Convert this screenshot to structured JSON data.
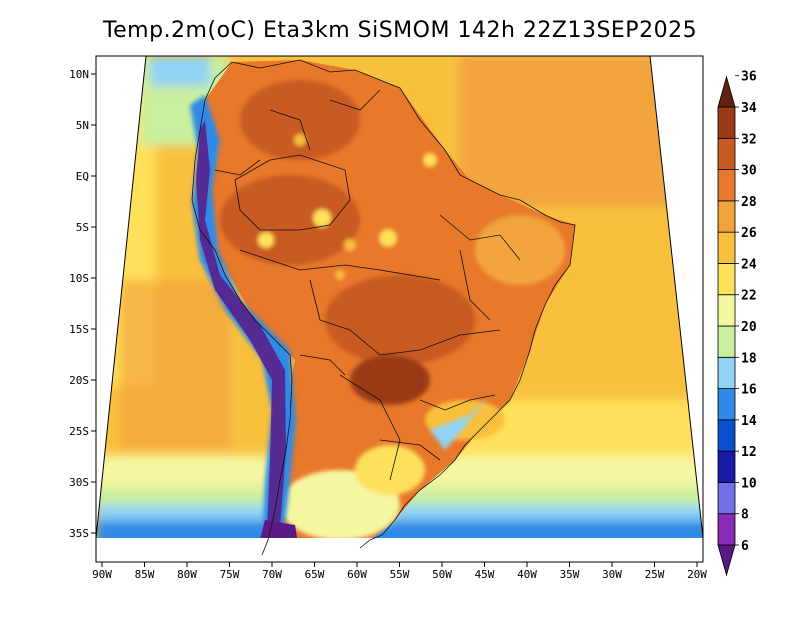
{
  "title": "Temp.2m(oC) Eta3km SiSMOM 142h 22Z13SEP2025",
  "map": {
    "variable": "2 m air temperature",
    "units": "oC",
    "region": "South America / Brazil",
    "lat_labels": [
      "10N",
      "5N",
      "EQ",
      "5S",
      "10S",
      "15S",
      "20S",
      "25S",
      "30S",
      "35S"
    ],
    "lat_values": [
      10,
      5,
      0,
      -5,
      -10,
      -15,
      -20,
      -25,
      -30,
      -35
    ],
    "lon_labels": [
      "90W",
      "85W",
      "80W",
      "75W",
      "70W",
      "65W",
      "60W",
      "55W",
      "50W",
      "45W",
      "40W",
      "35W",
      "30W",
      "25W",
      "20W"
    ],
    "lon_values": [
      -90,
      -85,
      -80,
      -75,
      -70,
      -65,
      -60,
      -55,
      -50,
      -45,
      -40,
      -35,
      -30,
      -25,
      -20
    ]
  },
  "colorbar": {
    "labels": [
      "6",
      "8",
      "10",
      "12",
      "14",
      "16",
      "18",
      "20",
      "22",
      "24",
      "26",
      "28",
      "30",
      "32",
      "34",
      "36"
    ],
    "bins": [
      {
        "value": 6,
        "color": "#5a1a86"
      },
      {
        "value": 8,
        "color": "#8a2ab8"
      },
      {
        "value": 10,
        "color": "#7070e8"
      },
      {
        "value": 12,
        "color": "#1a1aa8"
      },
      {
        "value": 14,
        "color": "#0a4fd0"
      },
      {
        "value": 16,
        "color": "#2e8ae6"
      },
      {
        "value": 18,
        "color": "#8fd3f5"
      },
      {
        "value": 20,
        "color": "#c9ef9f"
      },
      {
        "value": 22,
        "color": "#f5f6a0"
      },
      {
        "value": 24,
        "color": "#ffe05a"
      },
      {
        "value": 26,
        "color": "#f9c03e"
      },
      {
        "value": 28,
        "color": "#f2a43c"
      },
      {
        "value": 30,
        "color": "#e8782a"
      },
      {
        "value": 32,
        "color": "#c85a22"
      },
      {
        "value": 34,
        "color": "#9a3a16"
      },
      {
        "value": 36,
        "color": "#5e2410"
      }
    ]
  }
}
